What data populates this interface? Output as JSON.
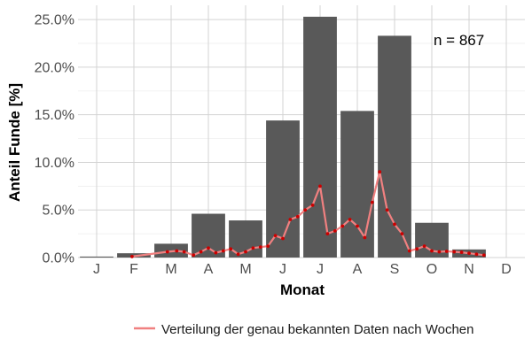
{
  "chart_data": {
    "type": "bar",
    "xlabel": "Monat",
    "ylabel": "Anteil Funde [%]",
    "ylim": [
      0,
      26.5
    ],
    "yticks": [
      0,
      5,
      10,
      15,
      20,
      25
    ],
    "ytick_labels": [
      "0.0%",
      "5.0%",
      "10.0%",
      "15.0%",
      "20.0%",
      "25.0%"
    ],
    "grid": true,
    "legend_position": "bottom",
    "annotation": "n = 867",
    "categories": [
      "J",
      "F",
      "M",
      "A",
      "M",
      "J",
      "J",
      "A",
      "S",
      "O",
      "N",
      "D"
    ],
    "series": [
      {
        "type": "bar",
        "values": [
          0.1,
          0.45,
          1.45,
          4.6,
          3.9,
          14.4,
          25.3,
          15.4,
          23.3,
          3.65,
          0.85,
          0.0
        ],
        "color": "#595959"
      },
      {
        "type": "line",
        "name": "Verteilung der genau bekannten Daten nach Wochen",
        "color": "#f08080",
        "marker_color": "#cc0000",
        "x": [
          1.95,
          2.9,
          3.15,
          3.35,
          3.6,
          3.8,
          4.0,
          4.2,
          4.4,
          4.6,
          4.8,
          5.0,
          5.2,
          5.4,
          5.6,
          5.8,
          6.0,
          6.2,
          6.4,
          6.6,
          6.8,
          7.0,
          7.2,
          7.4,
          7.6,
          7.8,
          8.0,
          8.2,
          8.4,
          8.6,
          8.8,
          9.0,
          9.2,
          9.4,
          9.6,
          9.8,
          10.0,
          10.2,
          10.4,
          10.6,
          10.8,
          11.0,
          11.2,
          11.4
        ],
        "y": [
          0.1,
          0.6,
          0.7,
          0.6,
          0.25,
          0.6,
          1.0,
          0.5,
          0.7,
          0.9,
          0.35,
          0.6,
          1.0,
          1.1,
          1.2,
          2.3,
          2.0,
          4.0,
          4.3,
          5.0,
          5.5,
          7.5,
          2.5,
          2.8,
          3.3,
          4.0,
          3.3,
          2.1,
          5.8,
          9.0,
          5.0,
          3.5,
          2.5,
          0.7,
          0.9,
          1.2,
          0.7,
          0.6,
          0.65,
          0.6,
          0.55,
          0.45,
          0.35,
          0.25
        ]
      }
    ]
  }
}
